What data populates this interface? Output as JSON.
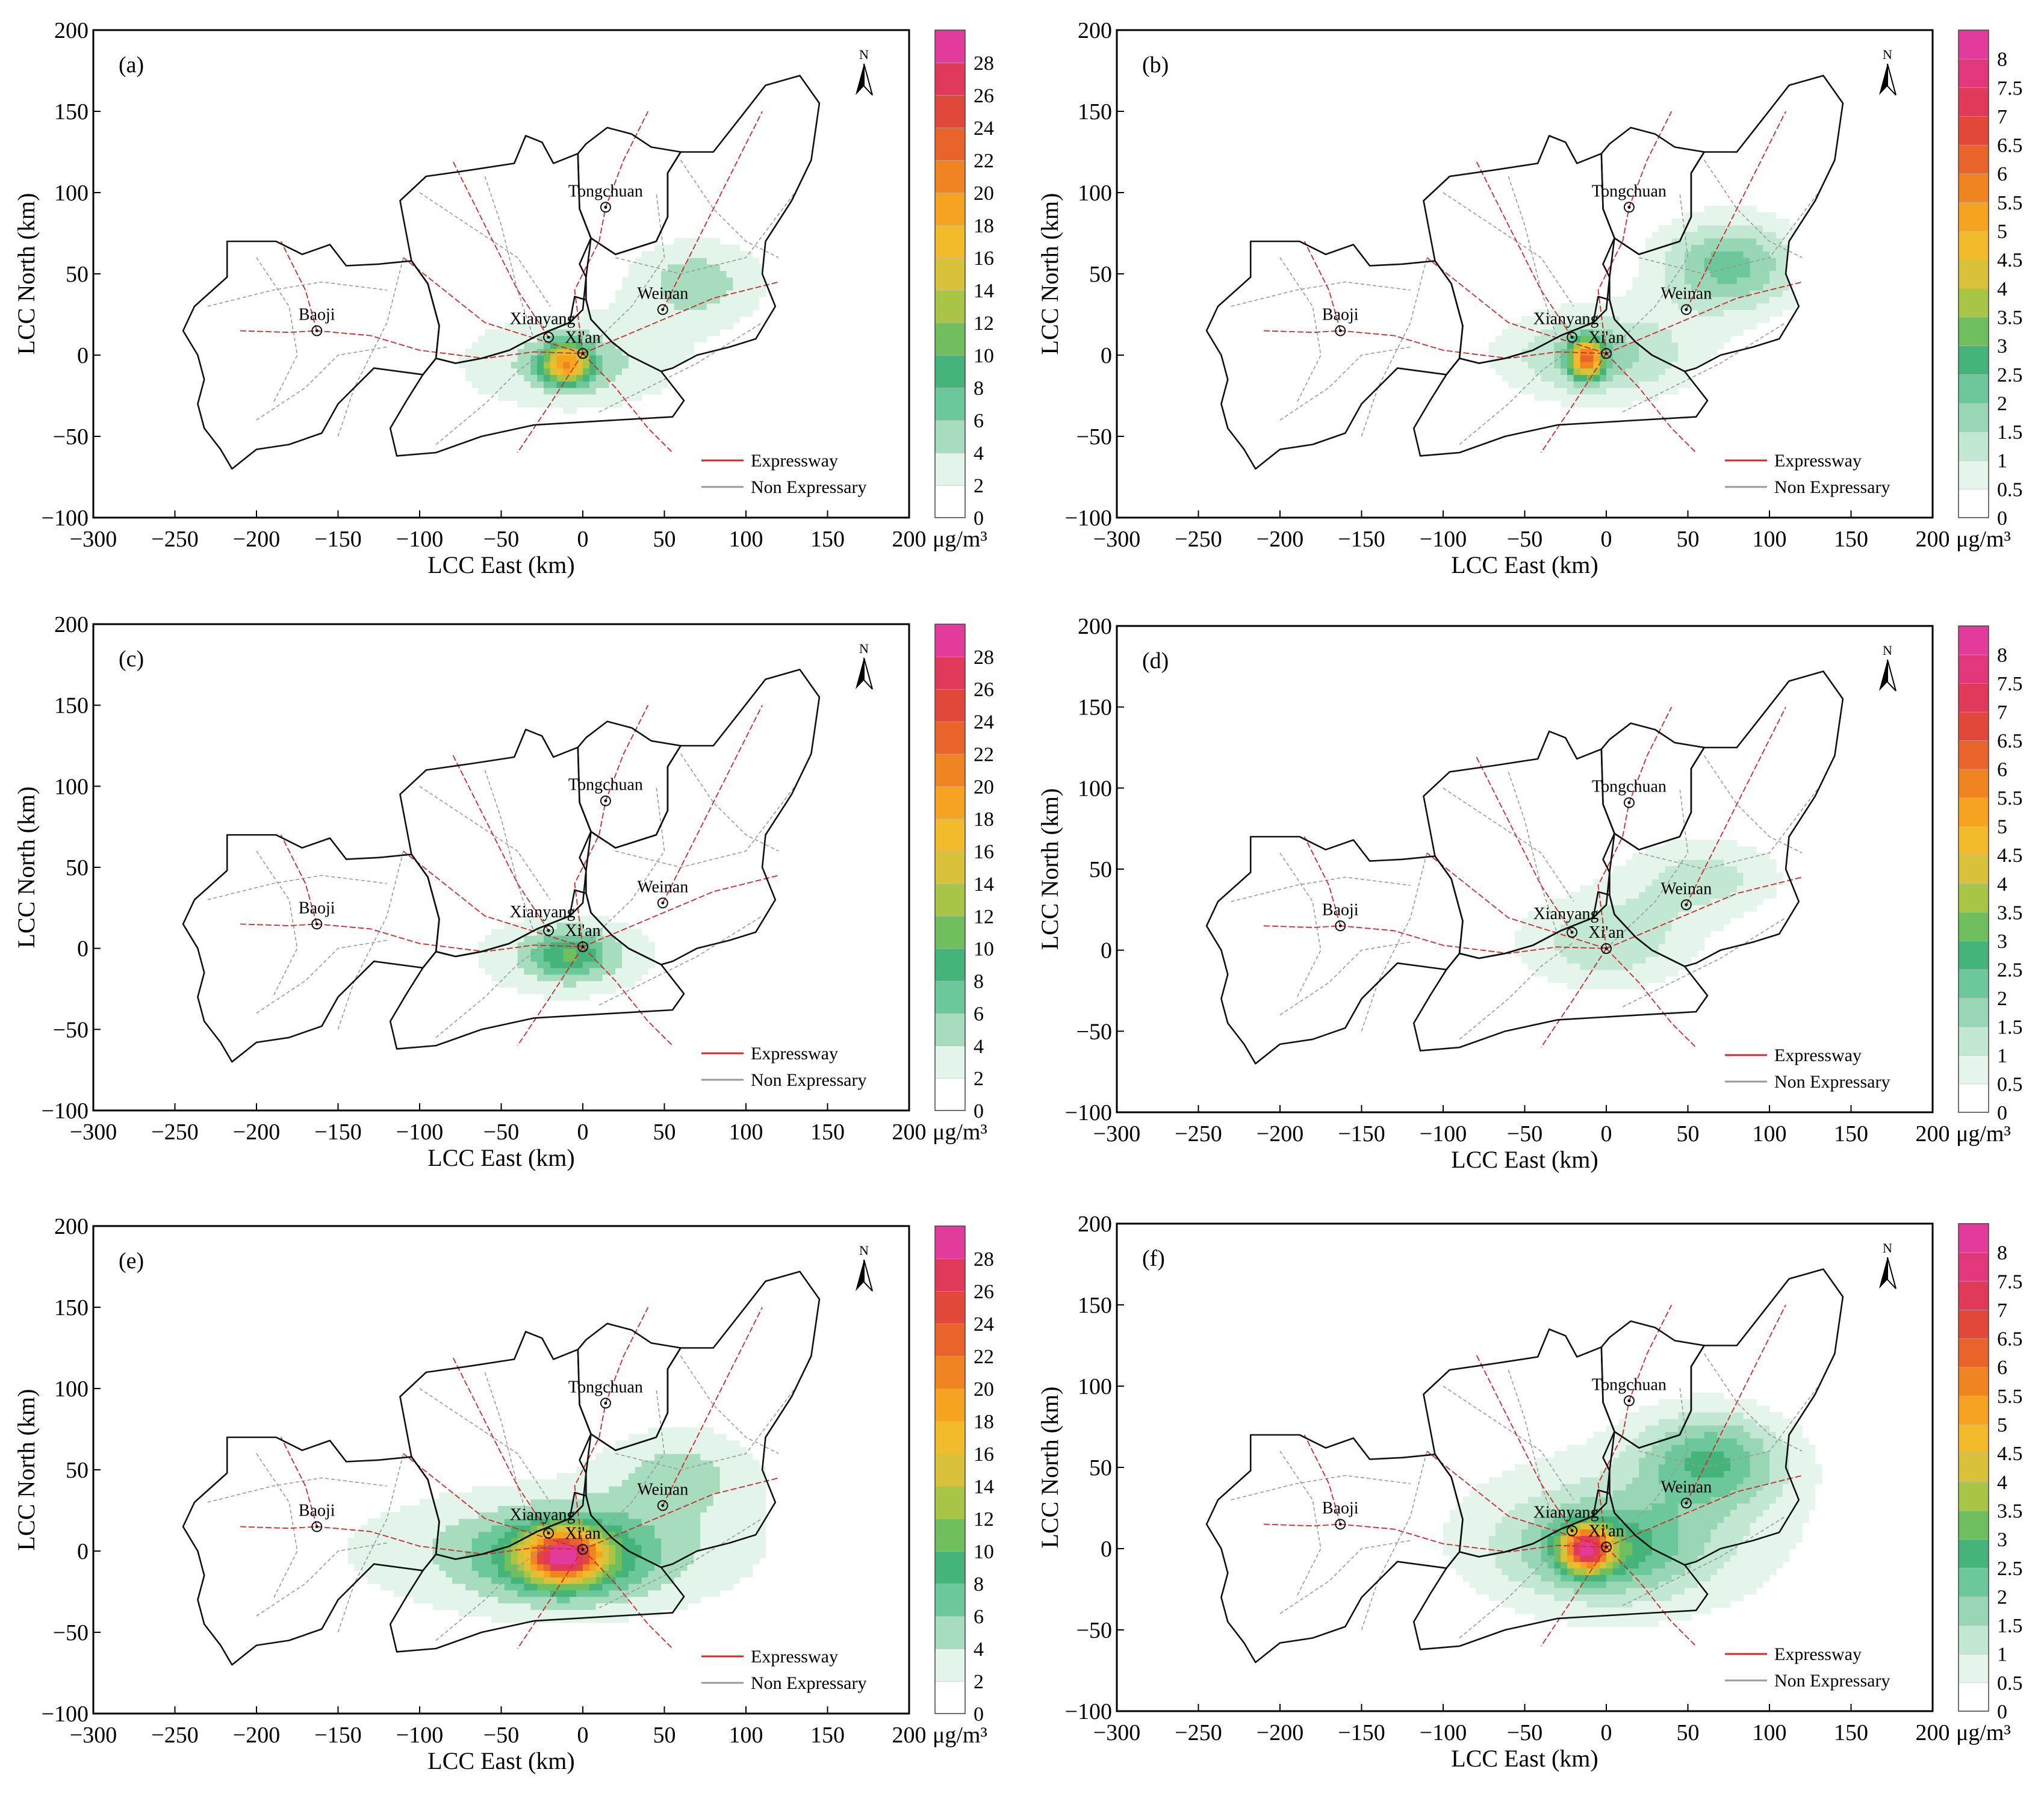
{
  "figure": {
    "colors": {
      "boundary": "#111111",
      "expressway": "#d02a2a",
      "non_expressway": "#9a9a9a",
      "city_marker": "#111111"
    },
    "north_label": "N",
    "cities": [
      {
        "name": "Baoji",
        "x": -163,
        "y": 15
      },
      {
        "name": "Xianyang",
        "x": -21,
        "y": 11
      },
      {
        "name": "Xi'an",
        "x": 0,
        "y": 1
      },
      {
        "name": "Tongchuan",
        "x": 14,
        "y": 91
      },
      {
        "name": "Weinan",
        "x": 49,
        "y": 28
      }
    ],
    "legend": {
      "expressway": "Expressway",
      "non_expressway": "Non Expressary"
    },
    "colorbar_scales": {
      "A": {
        "levels": [
          0,
          2,
          4,
          6,
          8,
          10,
          12,
          14,
          16,
          18,
          20,
          22,
          24,
          26,
          28,
          30
        ],
        "tick_labels": [
          "0",
          "2",
          "4",
          "6",
          "8",
          "10",
          "12",
          "14",
          "16",
          "18",
          "20",
          "22",
          "24",
          "26",
          "28"
        ],
        "colors": [
          "#ffffff",
          "#e3f4ea",
          "#a7dcbf",
          "#6cc89b",
          "#45b47b",
          "#6fbf5e",
          "#a9c545",
          "#d9c23a",
          "#f2bb2c",
          "#f6a321",
          "#ef8420",
          "#e8642a",
          "#e1483a",
          "#e0395a",
          "#e23b9b"
        ]
      },
      "B": {
        "levels": [
          0,
          0.5,
          1,
          1.5,
          2,
          2.5,
          3,
          3.5,
          4,
          4.5,
          5,
          5.5,
          6,
          6.5,
          7,
          7.5,
          8,
          8.5
        ],
        "tick_labels": [
          "0",
          "0.5",
          "1",
          "1.5",
          "2",
          "2.5",
          "3",
          "3.5",
          "4",
          "4.5",
          "5",
          "5.5",
          "6",
          "6.5",
          "7",
          "7.5",
          "8"
        ],
        "colors": [
          "#ffffff",
          "#e6f5ec",
          "#c2e7d2",
          "#98d6b6",
          "#6cc89b",
          "#45b47b",
          "#6fbf5e",
          "#a9c545",
          "#d9c23a",
          "#f2bb2c",
          "#f6a321",
          "#ef8420",
          "#e8642a",
          "#e1483a",
          "#e0395a",
          "#e2377a",
          "#e23b9b"
        ]
      }
    },
    "unit": "μg/m³"
  },
  "chart_data": [
    {
      "panel": "(a)",
      "type": "heatmap",
      "scale": "A",
      "title": "",
      "xlabel": "LCC East (km)",
      "ylabel": "LCC North (km)",
      "xlim": [
        -300,
        200
      ],
      "ylim": [
        -100,
        200
      ],
      "xticks": [
        -300,
        -250,
        -200,
        -150,
        -100,
        -50,
        0,
        50,
        100,
        150,
        200
      ],
      "yticks": [
        -100,
        -50,
        0,
        50,
        100,
        150,
        200
      ],
      "hotspots": [
        {
          "x": -8,
          "y": -5,
          "sx": 70,
          "sy": 30,
          "value": 5
        },
        {
          "x": -10,
          "y": -5,
          "sx": 14,
          "sy": 12,
          "value": 16
        },
        {
          "x": 70,
          "y": 45,
          "sx": 45,
          "sy": 28,
          "value": 5
        }
      ],
      "max_value": 18
    },
    {
      "panel": "(b)",
      "type": "heatmap",
      "scale": "B",
      "title": "",
      "xlabel": "LCC East (km)",
      "ylabel": "LCC North (km)",
      "xlim": [
        -300,
        200
      ],
      "ylim": [
        -100,
        200
      ],
      "xticks": [
        -300,
        -250,
        -200,
        -150,
        -100,
        -50,
        0,
        50,
        100,
        150,
        200
      ],
      "yticks": [
        -100,
        -50,
        0,
        50,
        100,
        150,
        200
      ],
      "hotspots": [
        {
          "x": -5,
          "y": 0,
          "sx": 60,
          "sy": 28,
          "value": 1.8
        },
        {
          "x": -12,
          "y": -2,
          "sx": 10,
          "sy": 12,
          "value": 4.6
        },
        {
          "x": 75,
          "y": 55,
          "sx": 45,
          "sy": 30,
          "value": 2.2
        }
      ],
      "max_value": 5
    },
    {
      "panel": "(c)",
      "type": "heatmap",
      "scale": "A",
      "title": "",
      "xlabel": "LCC East (km)",
      "ylabel": "LCC North (km)",
      "xlim": [
        -300,
        200
      ],
      "ylim": [
        -100,
        200
      ],
      "xticks": [
        -300,
        -250,
        -200,
        -150,
        -100,
        -50,
        0,
        50,
        100,
        150,
        200
      ],
      "yticks": [
        -100,
        -50,
        0,
        50,
        100,
        150,
        200
      ],
      "hotspots": [
        {
          "x": -10,
          "y": -5,
          "sx": 60,
          "sy": 28,
          "value": 4.5
        },
        {
          "x": -8,
          "y": -3,
          "sx": 22,
          "sy": 14,
          "value": 6
        }
      ],
      "max_value": 8
    },
    {
      "panel": "(d)",
      "type": "heatmap",
      "scale": "B",
      "title": "",
      "xlabel": "LCC East (km)",
      "ylabel": "LCC North (km)",
      "xlim": [
        -300,
        200
      ],
      "ylim": [
        -100,
        200
      ],
      "xticks": [
        -300,
        -250,
        -200,
        -150,
        -100,
        -50,
        0,
        50,
        100,
        150,
        200
      ],
      "yticks": [
        -100,
        -50,
        0,
        50,
        100,
        150,
        200
      ],
      "hotspots": [
        {
          "x": 0,
          "y": 5,
          "sx": 55,
          "sy": 30,
          "value": 1.4
        },
        {
          "x": 60,
          "y": 45,
          "sx": 50,
          "sy": 25,
          "value": 1.2
        }
      ],
      "max_value": 2
    },
    {
      "panel": "(e)",
      "type": "heatmap",
      "scale": "A",
      "title": "",
      "xlabel": "LCC East (km)",
      "ylabel": "LCC North (km)",
      "xlim": [
        -300,
        200
      ],
      "ylim": [
        -100,
        200
      ],
      "xticks": [
        -300,
        -250,
        -200,
        -150,
        -100,
        -50,
        0,
        50,
        100,
        150,
        200
      ],
      "yticks": [
        -100,
        -50,
        0,
        50,
        100,
        150,
        200
      ],
      "hotspots": [
        {
          "x": -20,
          "y": 0,
          "sx": 150,
          "sy": 45,
          "value": 4
        },
        {
          "x": -10,
          "y": -3,
          "sx": 55,
          "sy": 26,
          "value": 8
        },
        {
          "x": -12,
          "y": -3,
          "sx": 22,
          "sy": 15,
          "value": 20
        },
        {
          "x": 60,
          "y": 50,
          "sx": 50,
          "sy": 30,
          "value": 4
        }
      ],
      "max_value": 30
    },
    {
      "panel": "(f)",
      "type": "heatmap",
      "scale": "B",
      "title": "",
      "xlabel": "LCC East (km)",
      "ylabel": "LCC North (km)",
      "xlim": [
        -300,
        200
      ],
      "ylim": [
        -100,
        200
      ],
      "xticks": [
        -300,
        -250,
        -200,
        -150,
        -100,
        -50,
        0,
        50,
        100,
        150,
        200
      ],
      "yticks": [
        -100,
        -50,
        0,
        50,
        100,
        150,
        200
      ],
      "hotspots": [
        {
          "x": 10,
          "y": 10,
          "sx": 120,
          "sy": 60,
          "value": 1
        },
        {
          "x": 0,
          "y": 0,
          "sx": 55,
          "sy": 28,
          "value": 2
        },
        {
          "x": -12,
          "y": 0,
          "sx": 14,
          "sy": 13,
          "value": 5.5
        },
        {
          "x": 65,
          "y": 55,
          "sx": 45,
          "sy": 30,
          "value": 2.2
        }
      ],
      "max_value": 6
    }
  ]
}
